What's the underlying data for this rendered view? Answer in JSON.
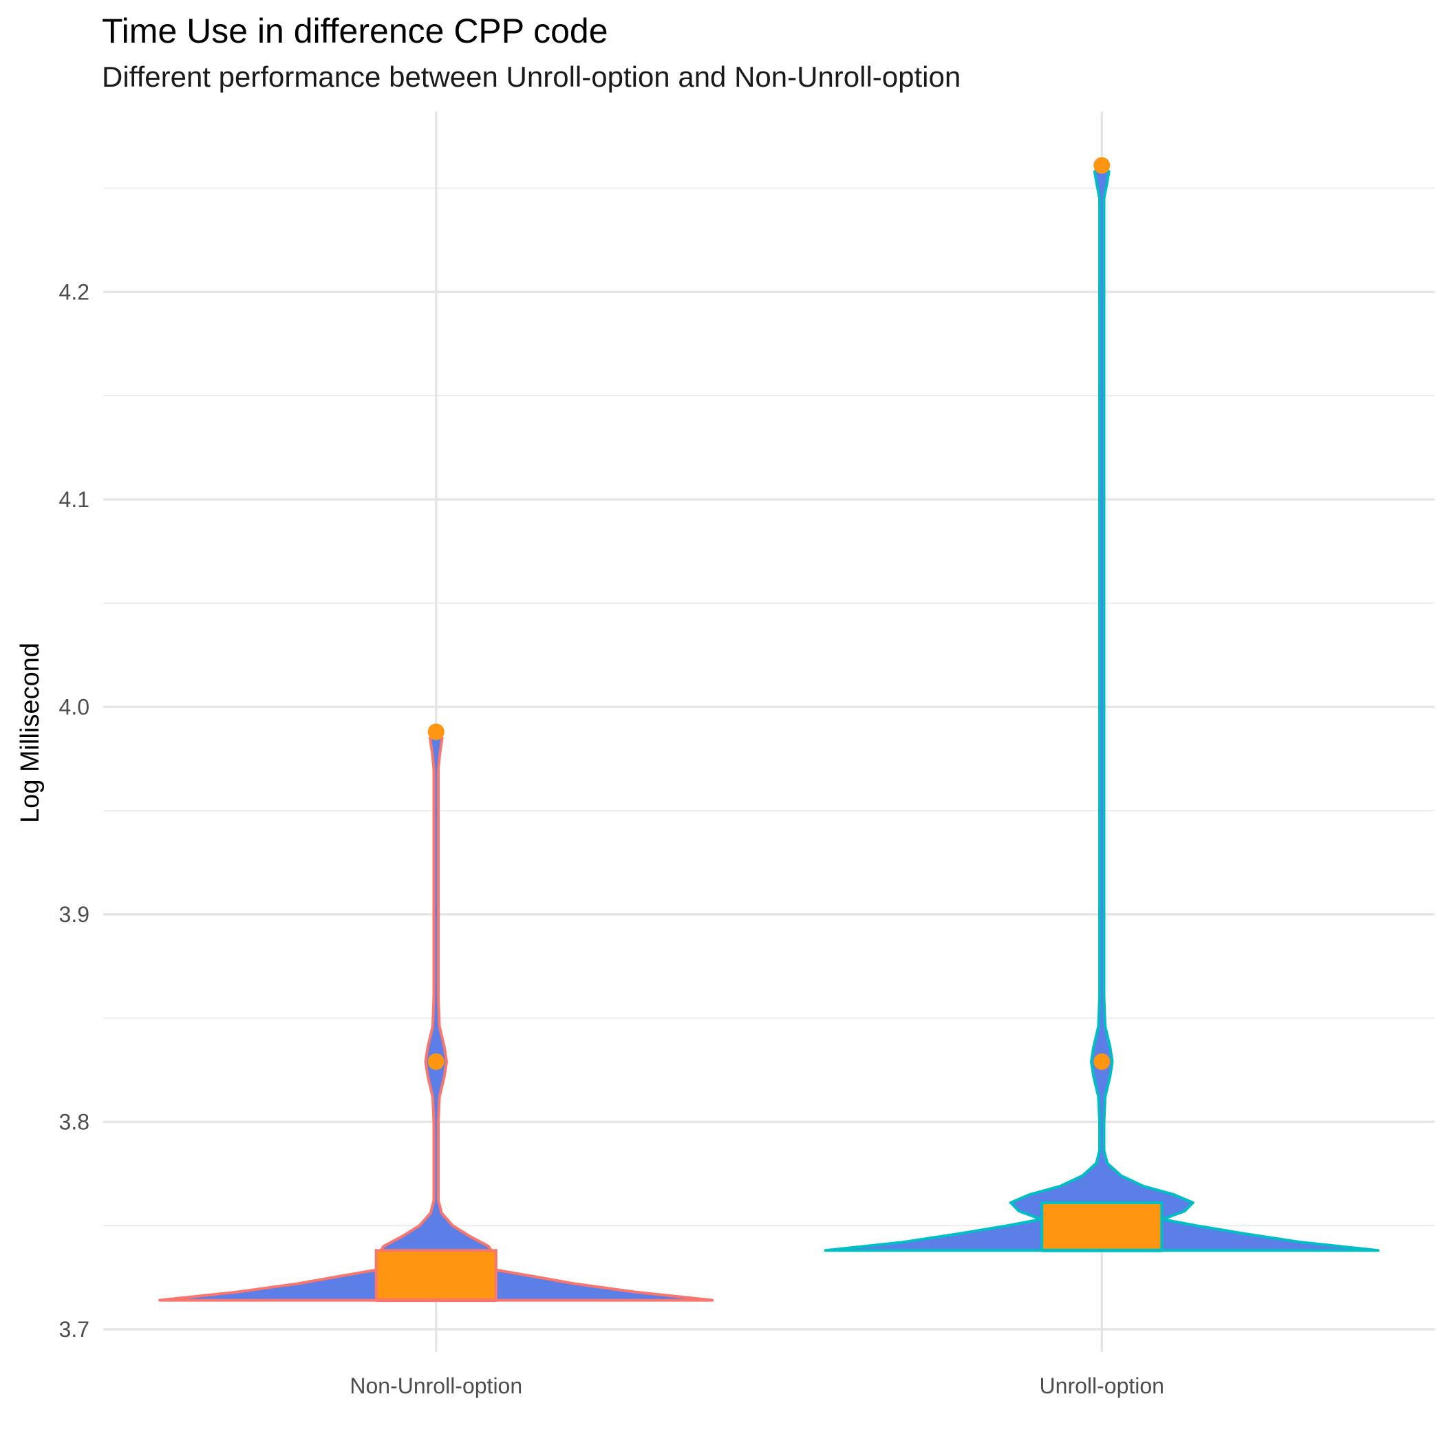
{
  "chart_data": {
    "type": "violin",
    "title": "Time Use in difference CPP code",
    "subtitle": "Different performance between Unroll-option and Non-Unroll-option",
    "xlabel": "",
    "ylabel": "Log Millisecond",
    "categories": [
      "Non-Unroll-option",
      "Unroll-option"
    ],
    "ylim": [
      3.689,
      4.287
    ],
    "yticks": [
      3.7,
      3.8,
      3.9,
      4.0,
      4.1,
      4.2
    ],
    "ytick_labels": [
      "3.7",
      "3.8",
      "3.9",
      "4.0",
      "4.1",
      "4.2"
    ],
    "grid": true,
    "legend": "none",
    "series": [
      {
        "category": "Non-Unroll-option",
        "outline_color": "#F8766D",
        "violin_fill": "#5B7FE6",
        "box_fill": "#FF9510",
        "min": 3.714,
        "q1": 3.714,
        "median": 3.714,
        "q3": 3.738,
        "max": 3.989,
        "outliers": [
          3.829,
          3.988
        ],
        "density_profile": [
          [
            3.714,
            1.0
          ],
          [
            3.718,
            0.72
          ],
          [
            3.722,
            0.5
          ],
          [
            3.726,
            0.33
          ],
          [
            3.729,
            0.2
          ],
          [
            3.733,
            0.19
          ],
          [
            3.737,
            0.205
          ],
          [
            3.74,
            0.19
          ],
          [
            3.745,
            0.12
          ],
          [
            3.75,
            0.06
          ],
          [
            3.756,
            0.02
          ],
          [
            3.762,
            0.008
          ],
          [
            3.8,
            0.008
          ],
          [
            3.812,
            0.012
          ],
          [
            3.822,
            0.03
          ],
          [
            3.829,
            0.038
          ],
          [
            3.836,
            0.03
          ],
          [
            3.846,
            0.012
          ],
          [
            3.86,
            0.008
          ],
          [
            3.97,
            0.008
          ],
          [
            3.978,
            0.014
          ],
          [
            3.985,
            0.022
          ],
          [
            3.989,
            0.0
          ]
        ]
      },
      {
        "category": "Unroll-option",
        "outline_color": "#00BFC4",
        "violin_fill": "#5B7FE6",
        "box_fill": "#FF9510",
        "min": 3.738,
        "q1": 3.738,
        "median": 3.738,
        "q3": 3.761,
        "max": 4.261,
        "outliers": [
          3.829,
          4.261
        ],
        "density_profile": [
          [
            3.738,
            1.0
          ],
          [
            3.742,
            0.72
          ],
          [
            3.746,
            0.52
          ],
          [
            3.75,
            0.34
          ],
          [
            3.753,
            0.22
          ],
          [
            3.757,
            0.3
          ],
          [
            3.761,
            0.33
          ],
          [
            3.765,
            0.26
          ],
          [
            3.769,
            0.15
          ],
          [
            3.774,
            0.07
          ],
          [
            3.78,
            0.02
          ],
          [
            3.786,
            0.008
          ],
          [
            3.8,
            0.008
          ],
          [
            3.812,
            0.012
          ],
          [
            3.822,
            0.03
          ],
          [
            3.829,
            0.038
          ],
          [
            3.836,
            0.03
          ],
          [
            3.846,
            0.012
          ],
          [
            3.86,
            0.008
          ],
          [
            4.245,
            0.008
          ],
          [
            4.252,
            0.018
          ],
          [
            4.258,
            0.026
          ],
          [
            4.261,
            0.0
          ]
        ]
      }
    ]
  }
}
